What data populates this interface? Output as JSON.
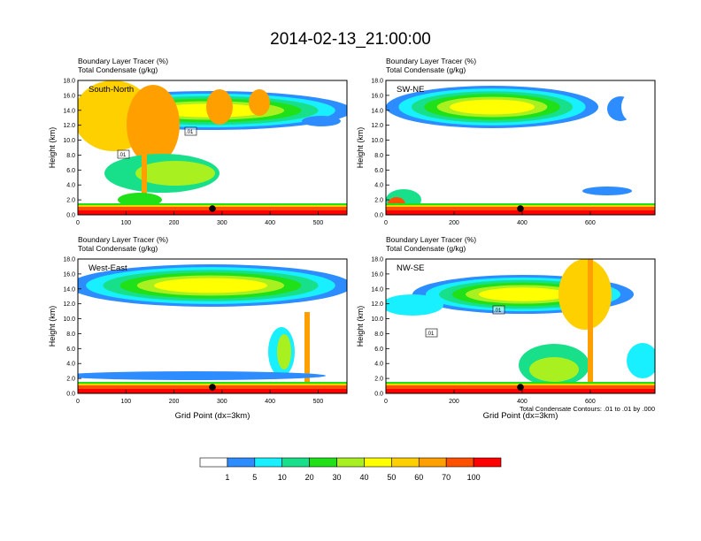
{
  "figure": {
    "title": "2014-02-13_21:00:00",
    "footnote": "Total Condensate Contours: .01 to .01 by .000"
  },
  "chart_data": [
    {
      "type": "heatmap",
      "panel_label": "South-North",
      "subtitle_1": "Boundary Layer Tracer",
      "subtitle_1_unit": "(%)",
      "subtitle_2": "Total Condensate",
      "subtitle_2_unit": "(g/kg)",
      "ylabel": "Height (km)",
      "xlabel": "",
      "xlim": [
        0,
        560
      ],
      "ylim": [
        0,
        18
      ],
      "x_ticks": [
        "0",
        "100",
        "200",
        "300",
        "400",
        "500"
      ],
      "y_ticks": [
        "0.0",
        "2.0",
        "4.0",
        "6.0",
        "8.0",
        "10.0",
        "12.0",
        "14.0",
        "16.0",
        "18.0"
      ],
      "contour_labels": [
        ".01",
        ".01"
      ],
      "marker_x": 280
    },
    {
      "type": "heatmap",
      "panel_label": "SW-NE",
      "subtitle_1": "Boundary Layer Tracer",
      "subtitle_1_unit": "(%)",
      "subtitle_2": "Total Condensate",
      "subtitle_2_unit": "(g/kg)",
      "ylabel": "Height (km)",
      "xlabel": "",
      "xlim": [
        0,
        790
      ],
      "ylim": [
        0,
        18
      ],
      "x_ticks": [
        "0",
        "200",
        "400",
        "600"
      ],
      "y_ticks": [
        "0.0",
        "2.0",
        "4.0",
        "6.0",
        "8.0",
        "10.0",
        "12.0",
        "14.0",
        "16.0",
        "18.0"
      ],
      "contour_labels": [],
      "marker_x": 395
    },
    {
      "type": "heatmap",
      "panel_label": "West-East",
      "subtitle_1": "Boundary Layer Tracer",
      "subtitle_1_unit": "(%)",
      "subtitle_2": "Total Condensate",
      "subtitle_2_unit": "(g/kg)",
      "ylabel": "Height (km)",
      "xlabel": "Grid Point (dx=3km)",
      "xlim": [
        0,
        560
      ],
      "ylim": [
        0,
        18
      ],
      "x_ticks": [
        "0",
        "100",
        "200",
        "300",
        "400",
        "500"
      ],
      "y_ticks": [
        "0.0",
        "2.0",
        "4.0",
        "6.0",
        "8.0",
        "10.0",
        "12.0",
        "14.0",
        "16.0",
        "18.0"
      ],
      "contour_labels": [],
      "marker_x": 280
    },
    {
      "type": "heatmap",
      "panel_label": "NW-SE",
      "subtitle_1": "Boundary Layer Tracer",
      "subtitle_1_unit": "(%)",
      "subtitle_2": "Total Condensate",
      "subtitle_2_unit": "(g/kg)",
      "ylabel": "Height (km)",
      "xlabel": "Grid Point (dx=3km)",
      "xlim": [
        0,
        790
      ],
      "ylim": [
        0,
        18
      ],
      "x_ticks": [
        "0",
        "200",
        "400",
        "600"
      ],
      "y_ticks": [
        "0.0",
        "2.0",
        "4.0",
        "6.0",
        "8.0",
        "10.0",
        "12.0",
        "14.0",
        "16.0",
        "18.0"
      ],
      "contour_labels": [
        ".01",
        ".01"
      ],
      "marker_x": 395
    }
  ],
  "colorbar": {
    "labels": [
      "1",
      "5",
      "10",
      "20",
      "30",
      "40",
      "50",
      "60",
      "70",
      "100"
    ],
    "colors": [
      "#ffffff",
      "#2d8cff",
      "#18f0ff",
      "#18e08a",
      "#20e018",
      "#a8f020",
      "#ffff00",
      "#ffd000",
      "#ffa000",
      "#ff5000",
      "#ff0000"
    ]
  }
}
